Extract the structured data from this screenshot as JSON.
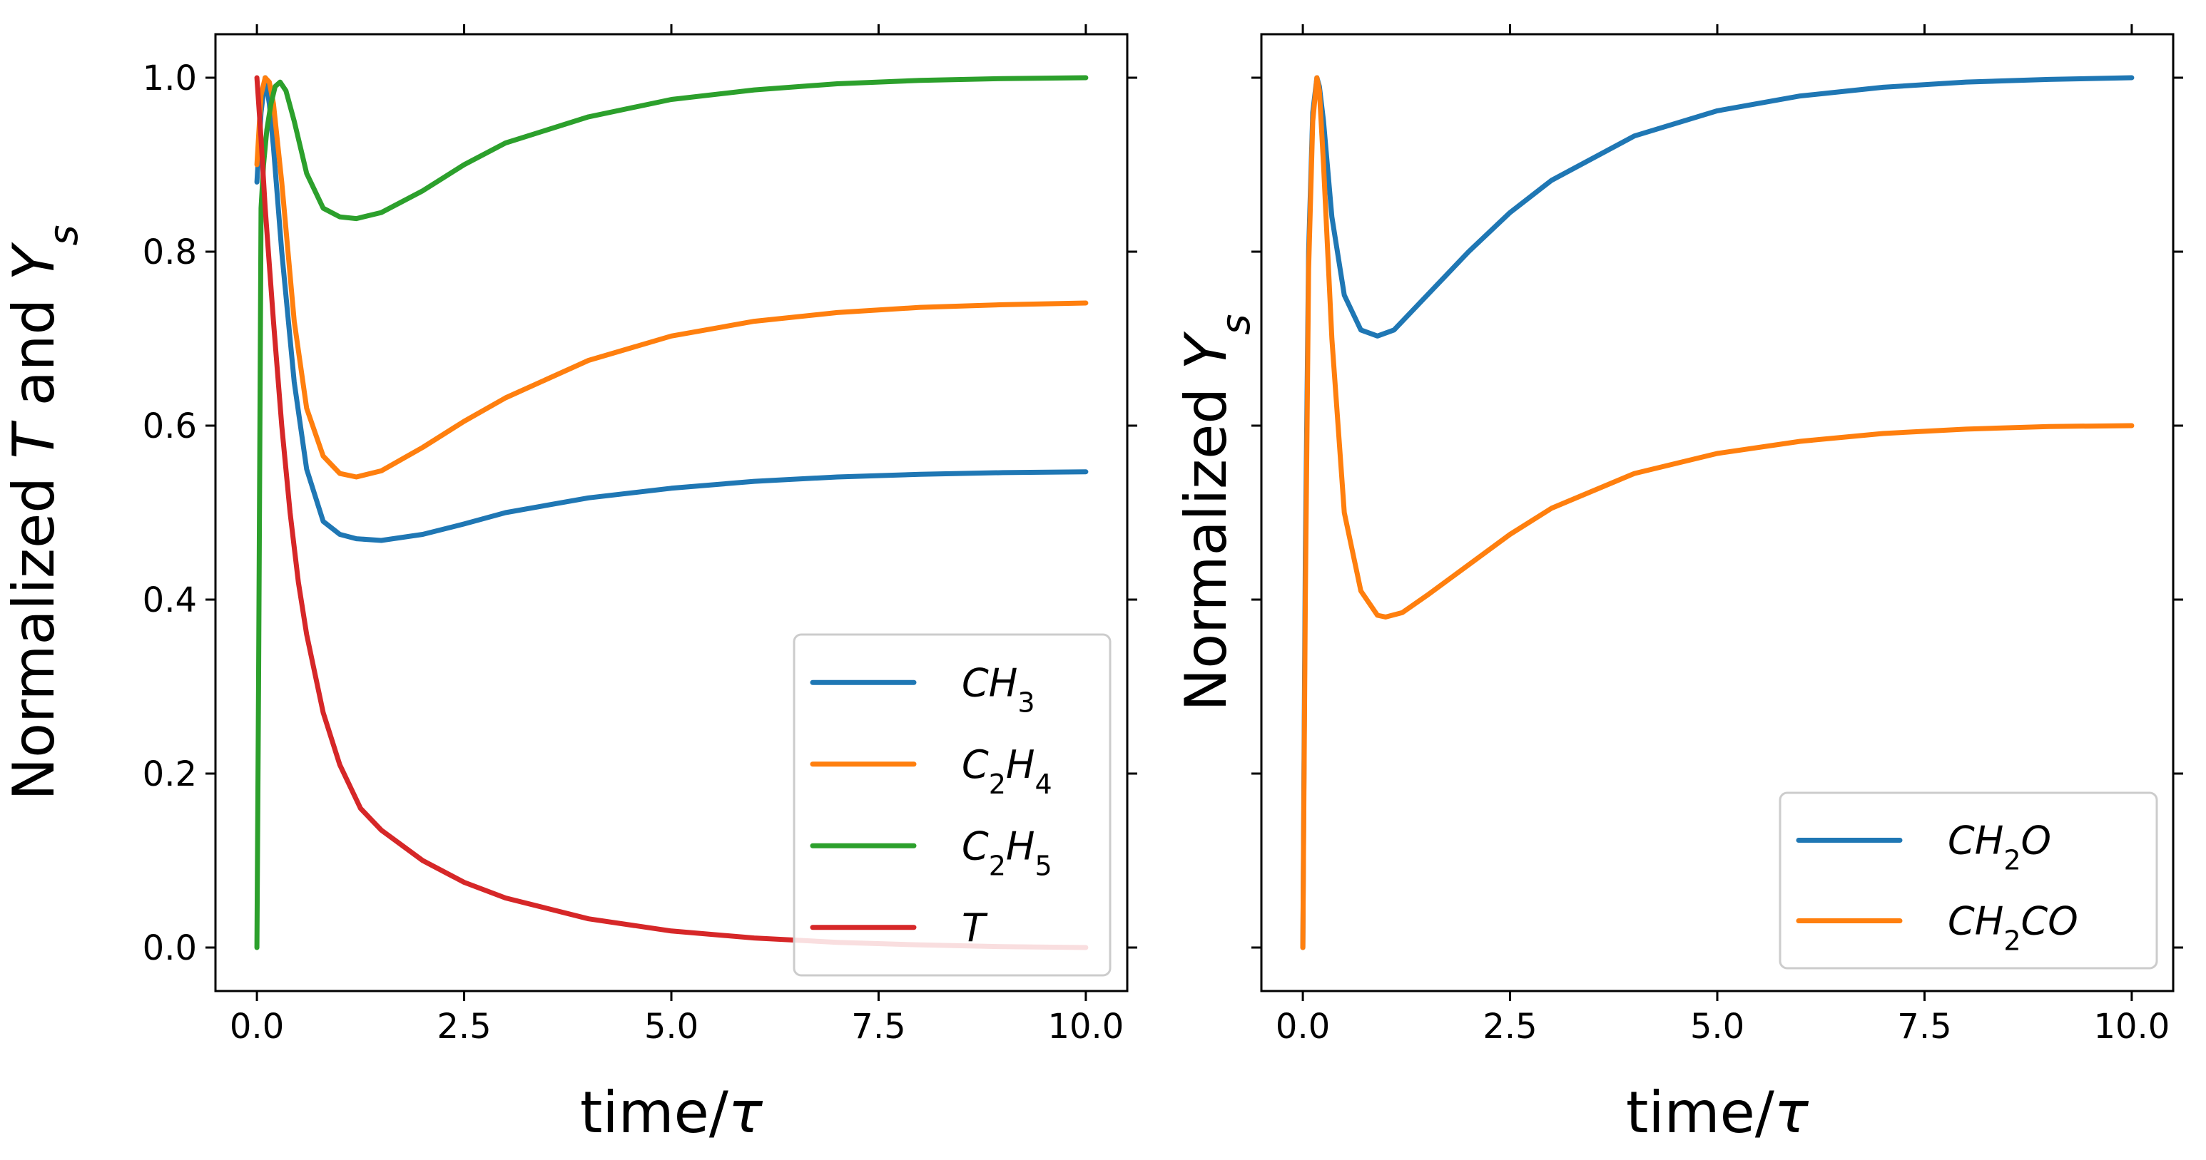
{
  "chart_data": [
    {
      "type": "line",
      "xlabel": "time/τ",
      "ylabel": "Normalized T and Ys",
      "xlim": [
        -0.5,
        10.5
      ],
      "ylim": [
        -0.05,
        1.05
      ],
      "xticks": [
        "0.0",
        "2.5",
        "5.0",
        "7.5",
        "10.0"
      ],
      "yticks": [
        "0.0",
        "0.2",
        "0.4",
        "0.6",
        "0.8",
        "1.0"
      ],
      "legend_position": "lower-right",
      "series": [
        {
          "name": "CH3",
          "color": "#1f77b4",
          "x": [
            0,
            0.05,
            0.1,
            0.15,
            0.2,
            0.3,
            0.45,
            0.6,
            0.8,
            1.0,
            1.2,
            1.5,
            2.0,
            2.5,
            3.0,
            4.0,
            5.0,
            6.0,
            7.0,
            8.0,
            9.0,
            10.0
          ],
          "y": [
            0.88,
            0.96,
            1.0,
            0.97,
            0.92,
            0.8,
            0.65,
            0.55,
            0.49,
            0.475,
            0.47,
            0.468,
            0.475,
            0.487,
            0.5,
            0.517,
            0.528,
            0.536,
            0.541,
            0.544,
            0.546,
            0.547
          ]
        },
        {
          "name": "C2H4",
          "color": "#ff7f0e",
          "x": [
            0,
            0.05,
            0.1,
            0.15,
            0.2,
            0.3,
            0.45,
            0.6,
            0.8,
            1.0,
            1.2,
            1.5,
            2.0,
            2.5,
            3.0,
            4.0,
            5.0,
            6.0,
            7.0,
            8.0,
            9.0,
            10.0
          ],
          "y": [
            0.9,
            0.98,
            1.0,
            0.995,
            0.97,
            0.88,
            0.72,
            0.62,
            0.565,
            0.545,
            0.541,
            0.548,
            0.575,
            0.605,
            0.632,
            0.675,
            0.703,
            0.72,
            0.73,
            0.736,
            0.739,
            0.741
          ]
        },
        {
          "name": "C2H5",
          "color": "#2ca02c",
          "x": [
            0,
            0.02,
            0.05,
            0.08,
            0.12,
            0.17,
            0.22,
            0.28,
            0.35,
            0.45,
            0.6,
            0.8,
            1.0,
            1.2,
            1.5,
            2.0,
            2.5,
            3.0,
            4.0,
            5.0,
            6.0,
            7.0,
            8.0,
            9.0,
            10.0
          ],
          "y": [
            0.0,
            0.3,
            0.85,
            0.9,
            0.94,
            0.97,
            0.99,
            0.995,
            0.985,
            0.95,
            0.89,
            0.85,
            0.84,
            0.838,
            0.845,
            0.87,
            0.9,
            0.925,
            0.955,
            0.975,
            0.986,
            0.993,
            0.997,
            0.999,
            1.0
          ]
        },
        {
          "name": "T",
          "color": "#d62728",
          "x": [
            0,
            0.05,
            0.1,
            0.2,
            0.3,
            0.4,
            0.5,
            0.6,
            0.8,
            1.0,
            1.25,
            1.5,
            2.0,
            2.5,
            3.0,
            4.0,
            5.0,
            6.0,
            7.0,
            8.0,
            9.0,
            10.0
          ],
          "y": [
            1.0,
            0.93,
            0.85,
            0.72,
            0.6,
            0.5,
            0.42,
            0.36,
            0.27,
            0.21,
            0.16,
            0.135,
            0.1,
            0.075,
            0.057,
            0.033,
            0.019,
            0.011,
            0.006,
            0.003,
            0.001,
            0.0
          ]
        }
      ]
    },
    {
      "type": "line",
      "xlabel": "time/τ",
      "ylabel": "Normalized Ys",
      "xlim": [
        -0.5,
        10.5
      ],
      "ylim": [
        -0.05,
        1.05
      ],
      "xticks": [
        "0.0",
        "2.5",
        "5.0",
        "7.5",
        "10.0"
      ],
      "yticks": [],
      "legend_position": "lower-right",
      "series": [
        {
          "name": "CH2O",
          "color": "#1f77b4",
          "x": [
            0,
            0.03,
            0.07,
            0.12,
            0.17,
            0.2,
            0.25,
            0.35,
            0.5,
            0.7,
            0.9,
            1.1,
            1.5,
            2.0,
            2.5,
            3.0,
            4.0,
            5.0,
            6.0,
            7.0,
            8.0,
            9.0,
            10.0
          ],
          "y": [
            0.0,
            0.45,
            0.8,
            0.96,
            1.0,
            0.99,
            0.95,
            0.84,
            0.75,
            0.71,
            0.703,
            0.71,
            0.75,
            0.8,
            0.845,
            0.882,
            0.933,
            0.962,
            0.979,
            0.989,
            0.995,
            0.998,
            1.0
          ]
        },
        {
          "name": "CH2CO",
          "color": "#ff7f0e",
          "x": [
            0,
            0.03,
            0.07,
            0.12,
            0.17,
            0.2,
            0.25,
            0.35,
            0.5,
            0.7,
            0.9,
            1.0,
            1.2,
            1.5,
            2.0,
            2.5,
            3.0,
            4.0,
            5.0,
            6.0,
            7.0,
            8.0,
            9.0,
            10.0
          ],
          "y": [
            0.0,
            0.4,
            0.78,
            0.95,
            1.0,
            0.985,
            0.9,
            0.7,
            0.5,
            0.41,
            0.382,
            0.38,
            0.385,
            0.405,
            0.44,
            0.475,
            0.505,
            0.545,
            0.568,
            0.582,
            0.591,
            0.596,
            0.599,
            0.6
          ]
        }
      ]
    }
  ]
}
